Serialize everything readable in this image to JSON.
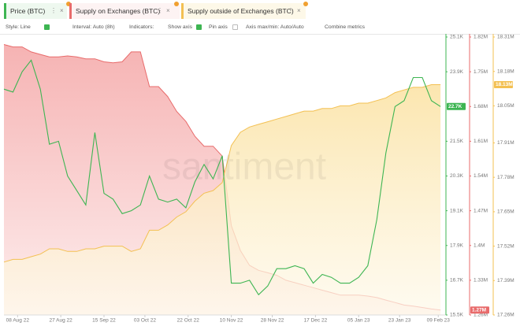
{
  "toolbar": {
    "style": "Style: Line",
    "interval": "Interval: Auto (8h)",
    "indicators": "Indicators:",
    "show_axis": "Show axis",
    "pin_axis": "Pin axis",
    "axis_minmax": "Axis max/min: Auto/Auto",
    "combine": "Combine metrics"
  },
  "watermark": "santiment",
  "chart_data": {
    "type": "line",
    "x": [
      "2022-08-02",
      "2022-08-06",
      "2022-08-10",
      "2022-08-14",
      "2022-08-18",
      "2022-08-22",
      "2022-08-26",
      "2022-08-30",
      "2022-09-03",
      "2022-09-07",
      "2022-09-11",
      "2022-09-15",
      "2022-09-19",
      "2022-09-23",
      "2022-09-27",
      "2022-10-01",
      "2022-10-05",
      "2022-10-09",
      "2022-10-13",
      "2022-10-17",
      "2022-10-21",
      "2022-10-25",
      "2022-10-29",
      "2022-11-02",
      "2022-11-06",
      "2022-11-10",
      "2022-11-14",
      "2022-11-18",
      "2022-11-22",
      "2022-11-26",
      "2022-11-30",
      "2022-12-04",
      "2022-12-08",
      "2022-12-12",
      "2022-12-16",
      "2022-12-20",
      "2022-12-24",
      "2022-12-28",
      "2023-01-01",
      "2023-01-05",
      "2023-01-09",
      "2023-01-13",
      "2023-01-17",
      "2023-01-21",
      "2023-01-25",
      "2023-01-29",
      "2023-02-02",
      "2023-02-06",
      "2023-02-10"
    ],
    "xlim": [
      "2022-08-02",
      "2023-02-11"
    ],
    "xticks": [
      {
        "value": "2022-08-08",
        "label": "08 Aug 22"
      },
      {
        "value": "2022-08-27",
        "label": "27 Aug 22"
      },
      {
        "value": "2022-09-15",
        "label": "15 Sep 22"
      },
      {
        "value": "2022-10-03",
        "label": "03 Oct 22"
      },
      {
        "value": "2022-10-22",
        "label": "22 Oct 22"
      },
      {
        "value": "2022-11-10",
        "label": "10 Nov 22"
      },
      {
        "value": "2022-11-28",
        "label": "28 Nov 22"
      },
      {
        "value": "2022-12-17",
        "label": "17 Dec 22"
      },
      {
        "value": "2023-01-05",
        "label": "05 Jan 23"
      },
      {
        "value": "2023-01-23",
        "label": "23 Jan 23"
      },
      {
        "value": "2023-02-09",
        "label": "09 Feb 23"
      }
    ],
    "ylim": [
      15500,
      25100
    ],
    "yticks": [
      {
        "value": 25100,
        "label": "25.1K"
      },
      {
        "value": 23900,
        "label": "23.9K"
      },
      {
        "value": 21500,
        "label": "21.5K"
      },
      {
        "value": 20300,
        "label": "20.3K"
      },
      {
        "value": 19100,
        "label": "19.1K"
      },
      {
        "value": 17900,
        "label": "17.9K"
      },
      {
        "value": 16700,
        "label": "16.7K"
      },
      {
        "value": 15500,
        "label": "15.5K"
      }
    ],
    "y2lim": [
      1260000,
      1820000
    ],
    "y2ticks": [
      {
        "value": 1820000,
        "label": "1.82M"
      },
      {
        "value": 1750000,
        "label": "1.75M"
      },
      {
        "value": 1680000,
        "label": "1.68M"
      },
      {
        "value": 1610000,
        "label": "1.61M"
      },
      {
        "value": 1540000,
        "label": "1.54M"
      },
      {
        "value": 1470000,
        "label": "1.47M"
      },
      {
        "value": 1400000,
        "label": "1.4M"
      },
      {
        "value": 1330000,
        "label": "1.33M"
      },
      {
        "value": 1260000,
        "label": "1.26M"
      }
    ],
    "y3lim": [
      17260000,
      18310000
    ],
    "y3ticks": [
      {
        "value": 18310000,
        "label": "18.31M"
      },
      {
        "value": 18180000,
        "label": "18.18M"
      },
      {
        "value": 18050000,
        "label": "18.05M"
      },
      {
        "value": 17910000,
        "label": "17.91M"
      },
      {
        "value": 17780000,
        "label": "17.78M"
      },
      {
        "value": 17650000,
        "label": "17.65M"
      },
      {
        "value": 17520000,
        "label": "17.52M"
      },
      {
        "value": 17390000,
        "label": "17.39M"
      },
      {
        "value": 17260000,
        "label": "17.26M"
      }
    ],
    "series": [
      {
        "name": "Price (BTC)",
        "color": "#3db552",
        "axis": "y",
        "area": false,
        "last_label": "22.7K",
        "values": [
          23300,
          23200,
          23900,
          24300,
          23300,
          21400,
          21500,
          20300,
          19800,
          19300,
          21800,
          19700,
          19500,
          19000,
          19100,
          19300,
          20300,
          19500,
          19400,
          19500,
          19200,
          20100,
          20700,
          20200,
          21000,
          16600,
          16600,
          16700,
          16200,
          16500,
          17100,
          17100,
          17200,
          17100,
          16600,
          16900,
          16800,
          16600,
          16600,
          16800,
          17200,
          18800,
          21100,
          22700,
          22900,
          23700,
          23700,
          22900,
          22700
        ]
      },
      {
        "name": "Supply on Exchanges (BTC)",
        "color": "#e86b6b",
        "axis": "y2",
        "area": true,
        "last_label": "1.27M",
        "values": [
          1805000,
          1800000,
          1800000,
          1790000,
          1785000,
          1780000,
          1780000,
          1782000,
          1780000,
          1776000,
          1776000,
          1770000,
          1768000,
          1770000,
          1790000,
          1790000,
          1720000,
          1720000,
          1700000,
          1670000,
          1650000,
          1620000,
          1600000,
          1600000,
          1580000,
          1440000,
          1390000,
          1360000,
          1350000,
          1345000,
          1340000,
          1330000,
          1325000,
          1320000,
          1315000,
          1310000,
          1305000,
          1300000,
          1300000,
          1300000,
          1298000,
          1295000,
          1290000,
          1285000,
          1280000,
          1278000,
          1275000,
          1272000,
          1270000
        ]
      },
      {
        "name": "Supply outside of Exchanges (BTC)",
        "color": "#f3c052",
        "axis": "y3",
        "area": true,
        "last_label": "18.13M",
        "values": [
          17460000,
          17470000,
          17470000,
          17480000,
          17490000,
          17510000,
          17510000,
          17500000,
          17500000,
          17510000,
          17510000,
          17520000,
          17520000,
          17520000,
          17500000,
          17510000,
          17580000,
          17580000,
          17600000,
          17630000,
          17650000,
          17690000,
          17720000,
          17730000,
          17760000,
          17900000,
          17950000,
          17970000,
          17980000,
          17990000,
          18000000,
          18010000,
          18020000,
          18030000,
          18030000,
          18040000,
          18040000,
          18050000,
          18050000,
          18060000,
          18060000,
          18070000,
          18080000,
          18100000,
          18110000,
          18120000,
          18120000,
          18130000,
          18130000
        ]
      }
    ]
  }
}
